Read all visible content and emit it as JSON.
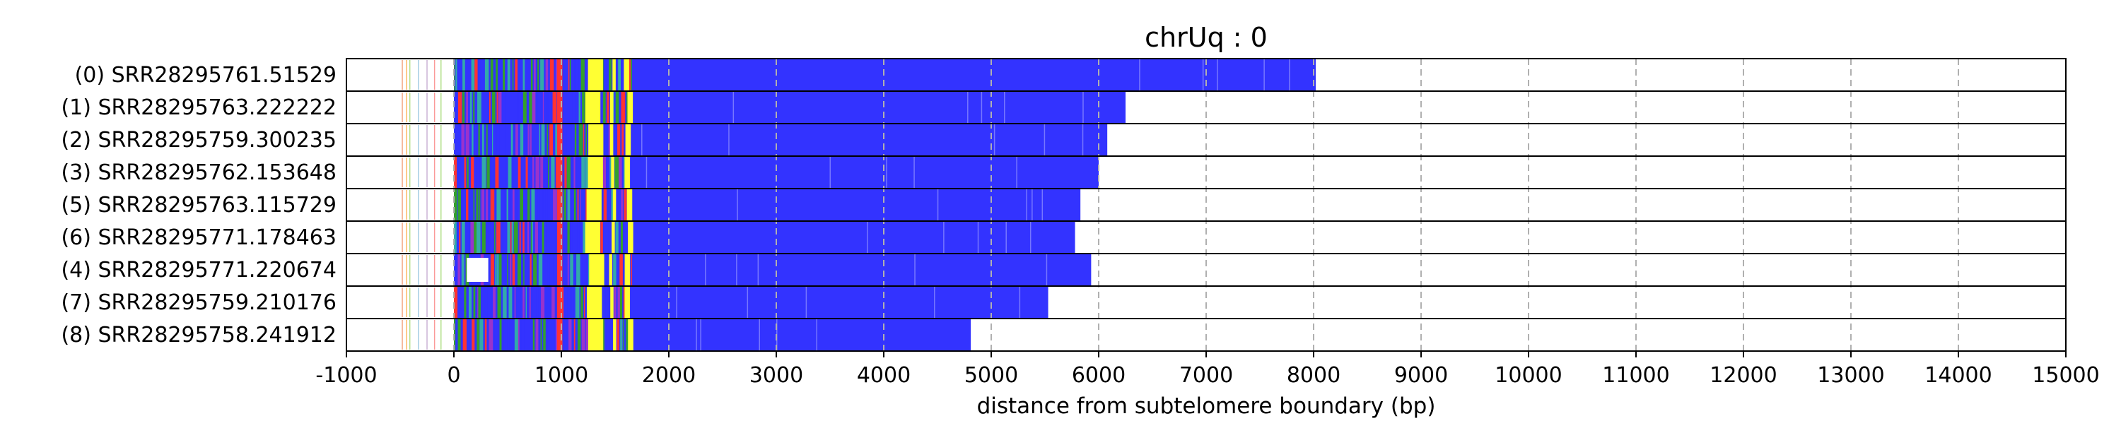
{
  "chart_data": {
    "type": "bar",
    "title": "chrUq : 0",
    "xlabel": "distance from subtelomere boundary (bp)",
    "ylabel": "",
    "xlim": [
      -1000,
      15000
    ],
    "xticks": [
      "-1000",
      "0",
      "1000",
      "2000",
      "3000",
      "4000",
      "5000",
      "6000",
      "7000",
      "8000",
      "9000",
      "10000",
      "11000",
      "12000",
      "13000",
      "14000",
      "15000"
    ],
    "grid": "vertical dashed",
    "rows": [
      {
        "label": "(0) SRR28295761.51529",
        "end": 8020,
        "start": 0,
        "gap": null
      },
      {
        "label": "(1) SRR28295763.222222",
        "end": 6250,
        "start": 0,
        "gap": null
      },
      {
        "label": "(2) SRR28295759.300235",
        "end": 6080,
        "start": 0,
        "gap": null
      },
      {
        "label": "(3) SRR28295762.153648",
        "end": 6000,
        "start": 0,
        "gap": null
      },
      {
        "label": "(5) SRR28295763.115729",
        "end": 5830,
        "start": 0,
        "gap": null
      },
      {
        "label": "(6) SRR28295771.178463",
        "end": 5780,
        "start": 0,
        "gap": null
      },
      {
        "label": "(4) SRR28295771.220674",
        "end": 5930,
        "start": 0,
        "gap": [
          120,
          320
        ]
      },
      {
        "label": "(7) SRR28295759.210176",
        "end": 5530,
        "start": 0,
        "gap": null
      },
      {
        "label": "(8) SRR28295758.241912",
        "end": 4810,
        "start": 0,
        "gap": null
      }
    ],
    "colors": {
      "main": "#3333ff",
      "yellow": "#ffff33",
      "green": "#33a02c",
      "red": "#ff3333",
      "purple": "#9933cc",
      "teal": "#33aaaa",
      "grid": "#b0b0b0"
    }
  }
}
